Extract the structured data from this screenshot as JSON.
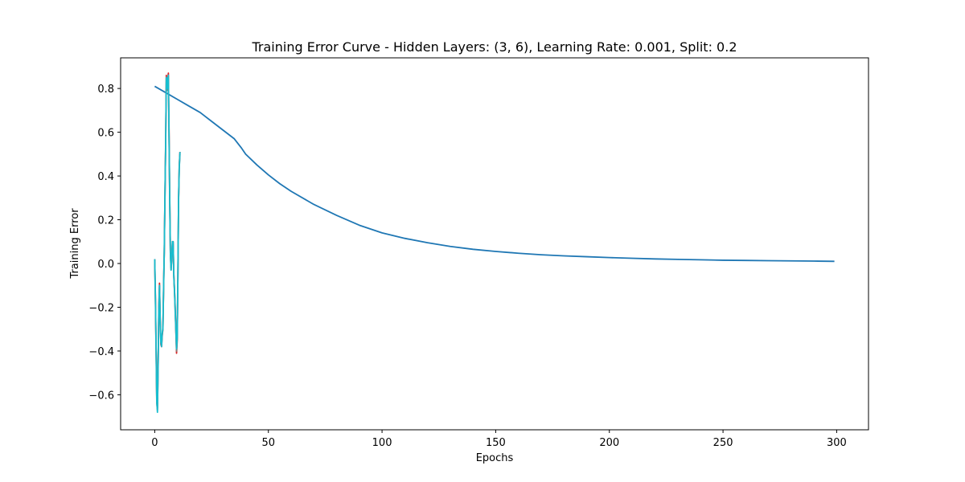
{
  "chart_data": {
    "type": "line",
    "title": "Training Error Curve - Hidden Layers: (3, 6), Learning Rate: 0.001, Split: 0.2",
    "xlabel": "Epochs",
    "ylabel": "Training Error",
    "xlim": [
      -15,
      314
    ],
    "ylim": [
      -0.76,
      0.94
    ],
    "xticks": [
      0,
      50,
      100,
      150,
      200,
      250,
      300
    ],
    "xtick_labels": [
      "0",
      "50",
      "100",
      "150",
      "200",
      "250",
      "300"
    ],
    "yticks": [
      -0.6,
      -0.4,
      -0.2,
      0.0,
      0.2,
      0.4,
      0.6,
      0.8
    ],
    "ytick_labels": [
      "−0.6",
      "−0.4",
      "−0.2",
      "0.0",
      "0.2",
      "0.4",
      "0.6",
      "0.8"
    ],
    "grid": false,
    "legend": false,
    "series": [
      {
        "color": "#1f77b4",
        "x": [
          0,
          5,
          10,
          15,
          20,
          25,
          30,
          35,
          38,
          40,
          45,
          50,
          55,
          60,
          70,
          80,
          90,
          100,
          110,
          120,
          130,
          140,
          150,
          160,
          170,
          180,
          190,
          200,
          210,
          220,
          230,
          240,
          250,
          260,
          270,
          280,
          290,
          299
        ],
        "y": [
          0.81,
          0.78,
          0.75,
          0.72,
          0.69,
          0.65,
          0.61,
          0.57,
          0.53,
          0.5,
          0.45,
          0.405,
          0.365,
          0.33,
          0.27,
          0.22,
          0.175,
          0.14,
          0.115,
          0.095,
          0.078,
          0.065,
          0.055,
          0.047,
          0.04,
          0.035,
          0.031,
          0.027,
          0.024,
          0.021,
          0.019,
          0.017,
          0.015,
          0.014,
          0.013,
          0.012,
          0.011,
          0.01
        ]
      },
      {
        "color": "#d62728",
        "x": [
          0,
          0.3,
          0.6,
          0.9,
          1.2,
          1.5,
          1.8,
          2.1,
          2.4,
          2.7,
          3,
          3.3,
          3.6,
          3.9,
          4.2,
          4.5,
          4.8,
          5.1,
          5.4,
          5.7,
          6,
          6.3,
          6.6,
          6.9,
          7.2,
          7.5,
          7.8,
          8.1,
          8.4,
          8.7,
          9,
          9.3,
          9.6,
          9.9,
          10.2,
          10.5,
          10.8,
          11.1
        ],
        "y": [
          0.02,
          -0.15,
          -0.38,
          -0.62,
          -0.66,
          -0.45,
          -0.2,
          -0.09,
          -0.26,
          -0.37,
          -0.38,
          -0.33,
          -0.3,
          -0.1,
          0.05,
          0.3,
          0.55,
          0.86,
          0.8,
          0.84,
          0.87,
          0.6,
          0.3,
          0.05,
          -0.02,
          0.03,
          0.1,
          0.1,
          -0.05,
          -0.12,
          -0.2,
          -0.3,
          -0.41,
          -0.35,
          -0.05,
          0.3,
          0.45,
          0.51
        ]
      },
      {
        "color": "#7f7f7f",
        "x": [
          0,
          0.3,
          0.6,
          0.9,
          1.2,
          1.5,
          1.8,
          2.1,
          2.4,
          2.7,
          3,
          3.3,
          3.6,
          3.9,
          4.2,
          4.5,
          4.8,
          5.1,
          5.4,
          5.7,
          6,
          6.3,
          6.6,
          6.9,
          7.2,
          7.5,
          7.8,
          8.1,
          8.4,
          8.7,
          9,
          9.3,
          9.6,
          9.9,
          10.2,
          10.5,
          10.8,
          11.1
        ],
        "y": [
          0.015,
          -0.17,
          -0.4,
          -0.64,
          -0.67,
          -0.47,
          -0.22,
          -0.1,
          -0.27,
          -0.36,
          -0.37,
          -0.32,
          -0.29,
          -0.12,
          0.06,
          0.31,
          0.53,
          0.85,
          0.79,
          0.83,
          0.86,
          0.58,
          0.28,
          0.04,
          -0.03,
          0.02,
          0.09,
          0.09,
          -0.06,
          -0.13,
          -0.22,
          -0.31,
          -0.4,
          -0.33,
          -0.04,
          0.29,
          0.44,
          0.5
        ]
      },
      {
        "color": "#17becf",
        "x": [
          0,
          0.3,
          0.6,
          0.9,
          1.2,
          1.5,
          1.8,
          2.1,
          2.4,
          2.7,
          3,
          3.3,
          3.6,
          3.9,
          4.2,
          4.5,
          4.8,
          5.1,
          5.4,
          5.7,
          6,
          6.3,
          6.6,
          6.9,
          7.2,
          7.5,
          7.8,
          8.1,
          8.4,
          8.7,
          9,
          9.3,
          9.6,
          9.9,
          10.2,
          10.5,
          10.8,
          11.1
        ],
        "y": [
          0.02,
          -0.16,
          -0.39,
          -0.63,
          -0.68,
          -0.46,
          -0.21,
          -0.1,
          -0.25,
          -0.36,
          -0.38,
          -0.32,
          -0.3,
          -0.11,
          0.05,
          0.31,
          0.54,
          0.85,
          0.8,
          0.84,
          0.86,
          0.59,
          0.29,
          0.04,
          -0.03,
          0.03,
          0.1,
          0.1,
          -0.06,
          -0.12,
          -0.21,
          -0.3,
          -0.39,
          -0.34,
          -0.05,
          0.3,
          0.44,
          0.51
        ]
      }
    ]
  }
}
